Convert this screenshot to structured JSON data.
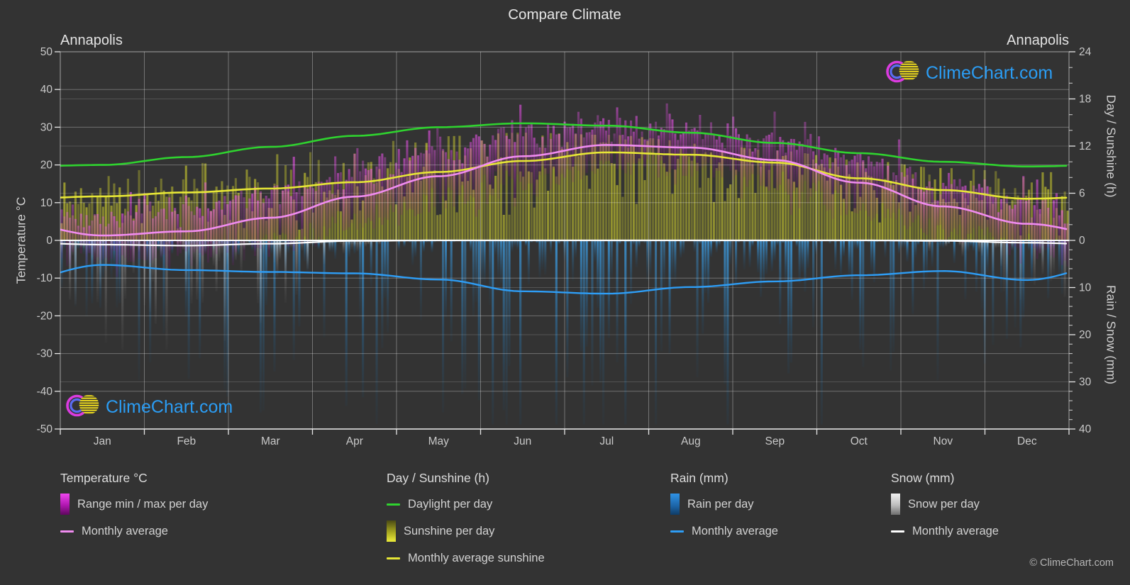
{
  "title": "Compare Climate",
  "location_left": "Annapolis",
  "location_right": "Annapolis",
  "watermark_text": "ClimeChart.com",
  "copyright_text": "© ClimeChart.com",
  "axes": {
    "left_title": "Temperature °C",
    "right_top_title": "Day / Sunshine (h)",
    "right_bottom_title": "Rain / Snow (mm)",
    "temp_ticks": [
      50,
      40,
      30,
      20,
      10,
      0,
      -10,
      -20,
      -30,
      -40,
      -50
    ],
    "day_ticks": [
      24,
      18,
      12,
      6,
      0
    ],
    "rain_ticks": [
      10,
      20,
      30,
      40
    ]
  },
  "months": [
    "Jan",
    "Feb",
    "Mar",
    "Apr",
    "May",
    "Jun",
    "Jul",
    "Aug",
    "Sep",
    "Oct",
    "Nov",
    "Dec"
  ],
  "legend": {
    "temperature": {
      "title": "Temperature °C",
      "range_label": "Range min / max per day",
      "avg_label": "Monthly average"
    },
    "day_sunshine": {
      "title": "Day / Sunshine (h)",
      "daylight_label": "Daylight per day",
      "sunshine_label": "Sunshine per day",
      "avg_label": "Monthly average sunshine"
    },
    "rain": {
      "title": "Rain (mm)",
      "per_day_label": "Rain per day",
      "avg_label": "Monthly average"
    },
    "snow": {
      "title": "Snow (mm)",
      "per_day_label": "Snow per day",
      "avg_label": "Monthly average"
    }
  },
  "colors": {
    "background": "#333333",
    "daylight_line": "#2fd32f",
    "sunshine_avg_line": "#e6e636",
    "temp_avg_line": "#f08cf0",
    "temp_range_bar": "#cc22cc",
    "sunshine_bar": "#d2d22e",
    "rain_bar": "#2e8fdc",
    "rain_avg_line": "#2e9df5",
    "snow_bar": "#d9d9d9",
    "snow_avg_line": "#ffffff",
    "logo_text": "#2b9df4"
  },
  "chart_data": {
    "type": "line",
    "categories": [
      "Jan",
      "Feb",
      "Mar",
      "Apr",
      "May",
      "Jun",
      "Jul",
      "Aug",
      "Sep",
      "Oct",
      "Nov",
      "Dec"
    ],
    "series": [
      {
        "name": "Daylight per day (h)",
        "axis": "day_h",
        "color": "#2fd32f",
        "values": [
          9.6,
          10.6,
          11.9,
          13.3,
          14.4,
          14.9,
          14.6,
          13.7,
          12.4,
          11.1,
          10.0,
          9.4
        ]
      },
      {
        "name": "Monthly average sunshine (h)",
        "axis": "day_h",
        "color": "#e6e636",
        "values": [
          5.6,
          6.1,
          6.6,
          7.4,
          8.7,
          10.1,
          11.2,
          10.9,
          9.9,
          7.9,
          6.4,
          5.3
        ]
      },
      {
        "name": "Monthly average temperature (°C)",
        "axis": "temp_c",
        "color": "#f08cf0",
        "values": [
          1.3,
          2.4,
          6.0,
          11.6,
          17.0,
          22.3,
          25.3,
          24.6,
          21.3,
          15.3,
          9.0,
          4.4
        ]
      },
      {
        "name": "Typical daily max temperature (°C)",
        "axis": "temp_c",
        "color": "#cc22cc",
        "values": [
          6.5,
          8.0,
          12.5,
          18.0,
          23.5,
          28.0,
          30.5,
          29.5,
          26.5,
          20.5,
          14.5,
          9.0
        ]
      },
      {
        "name": "Typical daily min temperature (°C)",
        "axis": "temp_c",
        "color": "#cc22cc",
        "values": [
          -4.5,
          -4.0,
          -0.5,
          5.0,
          10.5,
          16.5,
          20.0,
          19.5,
          15.5,
          9.0,
          3.0,
          -1.5
        ]
      },
      {
        "name": "Monthly average rain (mm)",
        "axis": "rain_mm",
        "color": "#2e9df5",
        "values": [
          5.2,
          6.3,
          6.7,
          7.0,
          8.3,
          10.8,
          11.3,
          9.9,
          8.7,
          7.4,
          6.5,
          8.4
        ]
      },
      {
        "name": "Monthly average snow (mm)",
        "axis": "rain_mm",
        "color": "#ffffff",
        "values": [
          0.9,
          1.1,
          0.7,
          0.1,
          0,
          0,
          0,
          0,
          0,
          0,
          0.1,
          0.5
        ]
      }
    ],
    "axis_ranges": {
      "temp_c": [
        -50,
        50
      ],
      "day_h": [
        0,
        24
      ],
      "rain_mm_inverted": [
        0,
        40
      ]
    },
    "grid": true,
    "legend_position": "bottom"
  }
}
